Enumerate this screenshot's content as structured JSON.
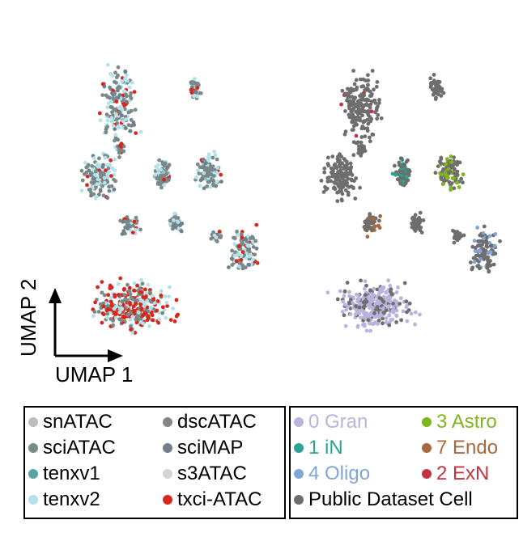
{
  "chart_data": [
    {
      "type": "scatter",
      "panel": "left",
      "xlabel": "UMAP 1",
      "ylabel": "UMAP 2",
      "grid": false,
      "legend_placement": "bottom",
      "series": [
        {
          "name": "snATAC",
          "color": "#bdbdbd"
        },
        {
          "name": "dscATAC",
          "color": "#858585"
        },
        {
          "name": "sciATAC",
          "color": "#7a8a88"
        },
        {
          "name": "sciMAP",
          "color": "#6f7f8c"
        },
        {
          "name": "tenxv1",
          "color": "#5aa3a5"
        },
        {
          "name": "s3ATAC",
          "color": "#d4d4d4"
        },
        {
          "name": "tenxv2",
          "color": "#b4e2ea"
        },
        {
          "name": "txci-ATAC",
          "color": "#d9261c"
        }
      ]
    },
    {
      "type": "scatter",
      "panel": "right",
      "grid": false,
      "legend_placement": "bottom",
      "series": [
        {
          "name": "0 Gran",
          "color": "#b9b3de"
        },
        {
          "name": "3 Astro",
          "color": "#7fb51d"
        },
        {
          "name": "1 iN",
          "color": "#2aa394"
        },
        {
          "name": "7 Endo",
          "color": "#a5683f"
        },
        {
          "name": "4 Oligo",
          "color": "#7fa6d6"
        },
        {
          "name": "2 ExN",
          "color": "#c23340"
        },
        {
          "name": "Public Dataset Cell",
          "color": "#6e6e6e"
        }
      ]
    }
  ]
}
